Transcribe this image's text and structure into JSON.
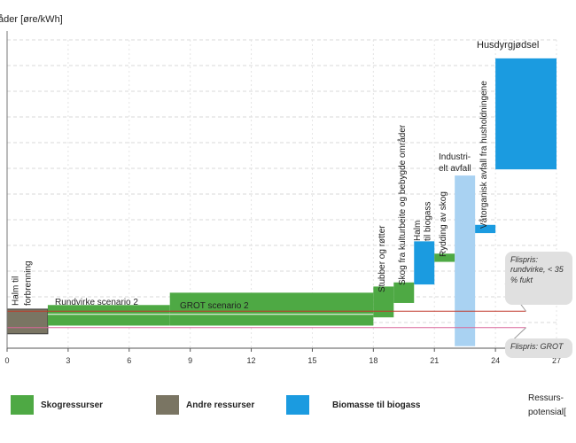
{
  "chart_data": {
    "type": "bar",
    "subtype": "supply-cost-curve",
    "ylabel": "åder [øre/kWh]",
    "xlabel": "Ressurs-potensial[",
    "xlim": [
      0,
      27
    ],
    "xticks": [
      0,
      3,
      6,
      9,
      12,
      15,
      18,
      21,
      24,
      27
    ],
    "ylim": [
      0,
      15
    ],
    "grid": true,
    "segments": [
      {
        "label": "Halm til forbrenning",
        "category": "Andre ressurser",
        "x0": 0,
        "x1": 2,
        "y0": 0.7,
        "y1": 1.9
      },
      {
        "label": "Rundvirke scenario 2",
        "category": "Skogressurser",
        "x0": 2,
        "x1": 8,
        "y0": 1.1,
        "y1": 2.1
      },
      {
        "label": "GROT scenario 2",
        "category": "Skogressurser",
        "x0": 8,
        "x1": 18,
        "y0": 1.1,
        "y1": 2.7
      },
      {
        "label": "Stubber og røtter",
        "category": "Skogressurser",
        "x0": 18,
        "x1": 19,
        "y0": 1.5,
        "y1": 3.0
      },
      {
        "label": "Skog fra kulturbeite og bebygde områder",
        "category": "Skogressurser",
        "x0": 19,
        "x1": 20,
        "y0": 2.2,
        "y1": 3.2
      },
      {
        "label": "Halm til biogass",
        "category": "Biomasse til biogass",
        "x0": 20,
        "x1": 21,
        "y0": 3.1,
        "y1": 5.2
      },
      {
        "label": "Rydding av skog",
        "category": "Skogressurser",
        "x0": 21,
        "x1": 22,
        "y0": 4.2,
        "y1": 4.6
      },
      {
        "label": "Industri-elt avfall",
        "category": "Biomasse til biogass",
        "x0": 22,
        "x1": 23,
        "y0": 0.1,
        "y1": 8.4
      },
      {
        "label": "Våtorganisk avfall fra husholdningene",
        "category": "Biomasse til biogass",
        "x0": 23,
        "x1": 24,
        "y0": 5.6,
        "y1": 6.0
      },
      {
        "label": "Husdyrgjødsel",
        "category": "Biomasse til biogass",
        "x0": 24,
        "x1": 27,
        "y0": 8.7,
        "y1": 14.1
      }
    ],
    "reference_lines": [
      {
        "label": "Flispris: rundvirke, < 35 % fukt",
        "y": 1.8
      },
      {
        "label": "Flispris: GROT",
        "y": 1.0
      }
    ],
    "legend": [
      {
        "label": "Skogressurser",
        "color": "#4ea944"
      },
      {
        "label": "Andre ressurser",
        "color": "#7a7563"
      },
      {
        "label": "Biomasse til biogass",
        "color": "#1b9be0"
      }
    ]
  },
  "annotations": {
    "note_rundvirke": "Flispris: rundvirke, < 35 % fukt",
    "note_grot": "Flispris: GROT"
  },
  "colors": {
    "skog": "#4ea944",
    "andre": "#7a7563",
    "biogass": "#1b9be0",
    "biogass_light": "#a9d2f2",
    "refline": "#d9679a",
    "redline": "#c0392b"
  }
}
